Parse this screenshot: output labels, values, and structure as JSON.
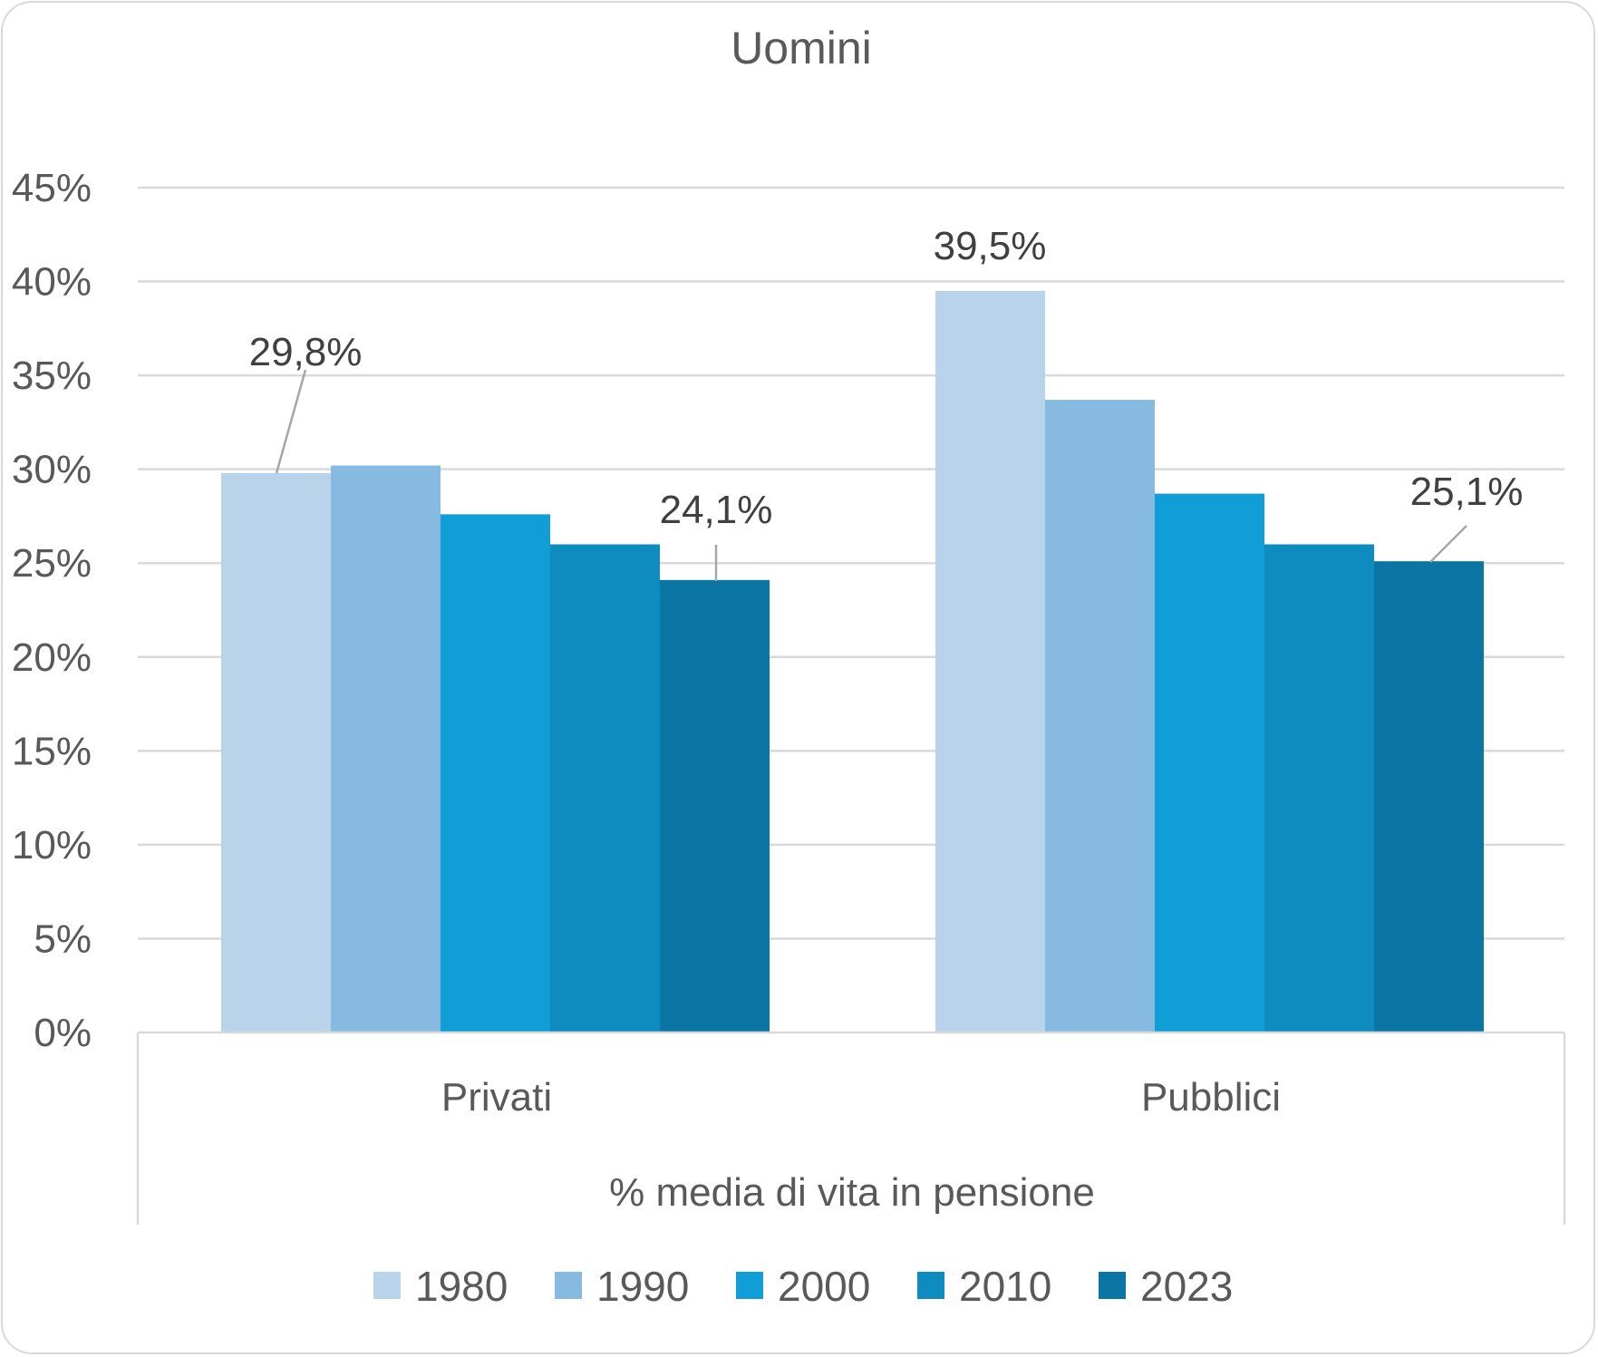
{
  "chart_data": {
    "type": "bar",
    "title": "Uomini",
    "xlabel": "% media di vita in pensione",
    "ylabel": "",
    "categories": [
      "Privati",
      "Pubblici"
    ],
    "ylim": [
      0,
      45
    ],
    "yticks": [
      "0%",
      "5%",
      "10%",
      "15%",
      "20%",
      "25%",
      "30%",
      "35%",
      "40%",
      "45%"
    ],
    "grid": true,
    "legend_position": "bottom",
    "series": [
      {
        "name": "1980",
        "color": "#b8d3ea",
        "values": [
          29.8,
          39.5
        ]
      },
      {
        "name": "1990",
        "color": "#87bae0",
        "values": [
          30.2,
          33.7
        ]
      },
      {
        "name": "2000",
        "color": "#119ed6",
        "values": [
          27.6,
          28.7
        ]
      },
      {
        "name": "2010",
        "color": "#0e8cbf",
        "values": [
          26.0,
          26.0
        ]
      },
      {
        "name": "2023",
        "color": "#0b76a3",
        "values": [
          24.1,
          25.1
        ]
      }
    ],
    "data_labels": [
      {
        "series": 0,
        "category": 0,
        "text": "29,8%"
      },
      {
        "series": 4,
        "category": 0,
        "text": "24,1%"
      },
      {
        "series": 0,
        "category": 1,
        "text": "39,5%"
      },
      {
        "series": 4,
        "category": 1,
        "text": "25,1%"
      }
    ]
  }
}
